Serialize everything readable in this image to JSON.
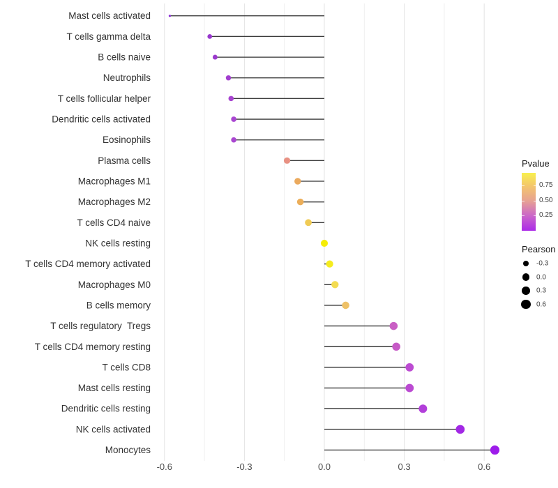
{
  "figure": {
    "background": "#ffffff"
  },
  "chart_data": {
    "type": "scatter",
    "variant": "lollipop",
    "title": "",
    "xlabel": "",
    "ylabel": "",
    "orientation": "horizontal",
    "grid": "vertical-only",
    "xlim": [
      -0.64,
      0.7
    ],
    "x_ticks": [
      -0.6,
      -0.3,
      0.0,
      0.3,
      0.6
    ],
    "x_tick_labels": [
      "-0.6",
      "-0.3",
      "0.0",
      "0.3",
      "0.6"
    ],
    "x_minor_ticks": [
      -0.45,
      -0.15,
      0.15,
      0.45
    ],
    "categories": [
      "Mast cells activated",
      "T cells gamma delta",
      "B cells naive",
      "Neutrophils",
      "T cells follicular helper",
      "Dendritic cells activated",
      "Eosinophils",
      "Plasma cells",
      "Macrophages M1",
      "Macrophages M2",
      "T cells CD4 naive",
      "NK cells resting",
      "T cells CD4 memory activated",
      "Macrophages M0",
      "B cells memory",
      "T cells regulatory  Tregs",
      "T cells CD4 memory resting",
      "T cells CD8",
      "Mast cells resting",
      "Dendritic cells resting",
      "NK cells activated",
      "Monocytes"
    ],
    "series": [
      {
        "name": "Pearson",
        "values": [
          -0.58,
          -0.43,
          -0.41,
          -0.36,
          -0.35,
          -0.34,
          -0.34,
          -0.14,
          -0.1,
          -0.09,
          -0.06,
          0.0,
          0.02,
          0.04,
          0.08,
          0.26,
          0.27,
          0.32,
          0.32,
          0.37,
          0.51,
          0.64
        ]
      }
    ],
    "point_colors": [
      "#8C30D6",
      "#9838CD",
      "#9B3ACD",
      "#A23ECF",
      "#A743D0",
      "#A946D1",
      "#AA47D1",
      "#E89183",
      "#EBAA5E",
      "#ECAE59",
      "#F0CB55",
      "#F5ED06",
      "#F5EC1E",
      "#F3DC52",
      "#EEC167",
      "#C95FC4",
      "#C65AC6",
      "#BC4BD2",
      "#BB4AD2",
      "#B23FDA",
      "#A228E5",
      "#9D1CEA"
    ],
    "stem_color": "#3a3a3a",
    "gridline_major_color": "#e3e3e3",
    "gridline_minor_color": "#efefef",
    "axis_text_color": "#4d4d4d",
    "category_text_color": "#333333",
    "legends": {
      "pvalue": {
        "title": "Pvalue",
        "tick_labels": [
          "0.75",
          "0.50",
          "0.25"
        ],
        "tick_values": [
          0.75,
          0.5,
          0.25
        ],
        "bar_value_top": 0.965,
        "bar_value_bottom": 0.0,
        "gradient_stops": [
          {
            "pos": 0,
            "color": "#F8F04E"
          },
          {
            "pos": 22,
            "color": "#F4C76B"
          },
          {
            "pos": 48,
            "color": "#E7A292"
          },
          {
            "pos": 74,
            "color": "#CB66C9"
          },
          {
            "pos": 100,
            "color": "#AB2BE8"
          }
        ]
      },
      "pearson": {
        "title": "Pearson",
        "dot_color": "#000000",
        "items": [
          {
            "label": "-0.3",
            "value": -0.3
          },
          {
            "label": "0.0",
            "value": 0.0
          },
          {
            "label": "0.3",
            "value": 0.3
          },
          {
            "label": "0.6",
            "value": 0.6
          }
        ]
      }
    }
  }
}
